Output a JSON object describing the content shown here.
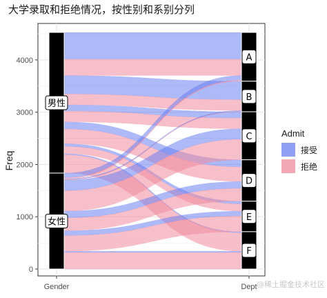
{
  "watermark": "@稀土掘金技术社区",
  "chart_data": {
    "type": "alluvial",
    "title": "大学录取和拒绝情况，按性别和系别分列",
    "xlabel": "",
    "ylabel": "Freq",
    "ylim": [
      0,
      4526
    ],
    "yticks": [
      0,
      1000,
      2000,
      3000,
      4000
    ],
    "axes": [
      "Gender",
      "Dept"
    ],
    "strata": {
      "Gender": [
        "男性",
        "女性"
      ],
      "Dept": [
        "A",
        "B",
        "C",
        "D",
        "E",
        "F"
      ]
    },
    "legend": {
      "title": "Admit",
      "position": "right",
      "items": [
        {
          "key": "Admitted",
          "label": "接受",
          "color": "#6b7ff0"
        },
        {
          "key": "Rejected",
          "label": "拒绝",
          "color": "#f08a9c"
        }
      ]
    },
    "flows": [
      {
        "admit": "Admitted",
        "gender": "男性",
        "dept": "A",
        "freq": 512
      },
      {
        "admit": "Admitted",
        "gender": "男性",
        "dept": "B",
        "freq": 353
      },
      {
        "admit": "Admitted",
        "gender": "男性",
        "dept": "C",
        "freq": 120
      },
      {
        "admit": "Admitted",
        "gender": "男性",
        "dept": "D",
        "freq": 138
      },
      {
        "admit": "Admitted",
        "gender": "男性",
        "dept": "E",
        "freq": 53
      },
      {
        "admit": "Admitted",
        "gender": "男性",
        "dept": "F",
        "freq": 22
      },
      {
        "admit": "Rejected",
        "gender": "男性",
        "dept": "A",
        "freq": 313
      },
      {
        "admit": "Rejected",
        "gender": "男性",
        "dept": "B",
        "freq": 207
      },
      {
        "admit": "Rejected",
        "gender": "男性",
        "dept": "C",
        "freq": 205
      },
      {
        "admit": "Rejected",
        "gender": "男性",
        "dept": "D",
        "freq": 279
      },
      {
        "admit": "Rejected",
        "gender": "男性",
        "dept": "E",
        "freq": 138
      },
      {
        "admit": "Rejected",
        "gender": "男性",
        "dept": "F",
        "freq": 351
      },
      {
        "admit": "Admitted",
        "gender": "女性",
        "dept": "A",
        "freq": 89
      },
      {
        "admit": "Admitted",
        "gender": "女性",
        "dept": "B",
        "freq": 17
      },
      {
        "admit": "Admitted",
        "gender": "女性",
        "dept": "C",
        "freq": 202
      },
      {
        "admit": "Admitted",
        "gender": "女性",
        "dept": "D",
        "freq": 131
      },
      {
        "admit": "Admitted",
        "gender": "女性",
        "dept": "E",
        "freq": 94
      },
      {
        "admit": "Admitted",
        "gender": "女性",
        "dept": "F",
        "freq": 24
      },
      {
        "admit": "Rejected",
        "gender": "女性",
        "dept": "A",
        "freq": 19
      },
      {
        "admit": "Rejected",
        "gender": "女性",
        "dept": "B",
        "freq": 8
      },
      {
        "admit": "Rejected",
        "gender": "女性",
        "dept": "C",
        "freq": 391
      },
      {
        "admit": "Rejected",
        "gender": "女性",
        "dept": "D",
        "freq": 244
      },
      {
        "admit": "Rejected",
        "gender": "女性",
        "dept": "E",
        "freq": 299
      },
      {
        "admit": "Rejected",
        "gender": "女性",
        "dept": "F",
        "freq": 317
      }
    ],
    "grid": true
  }
}
